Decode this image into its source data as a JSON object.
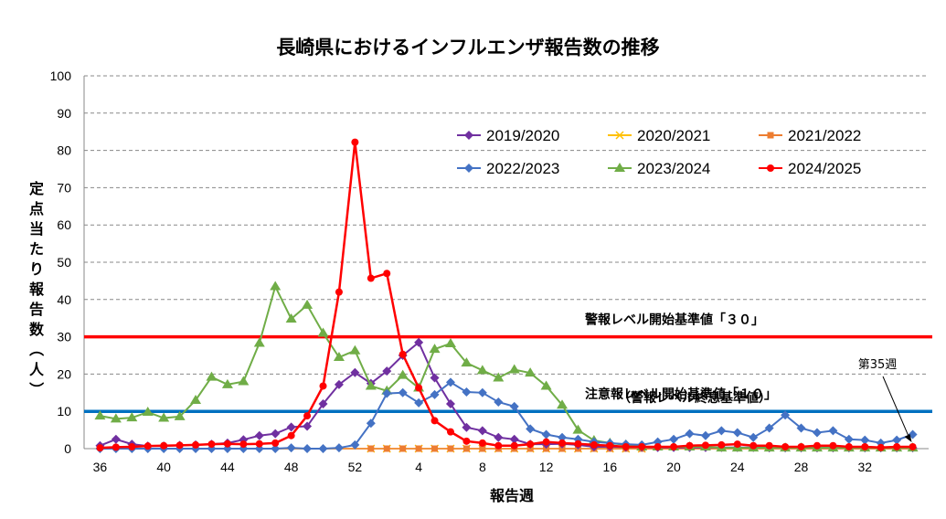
{
  "chart_data": {
    "type": "line",
    "title": "長崎県におけるインフルエンザ報告数の推移",
    "xlabel": "報告週",
    "ylabel": "定点当たり報告数（人）",
    "ylim": [
      0,
      100
    ],
    "yticks": [
      "0",
      "10",
      "20",
      "30",
      "40",
      "50",
      "60",
      "70",
      "80",
      "90",
      "100"
    ],
    "x": [
      36,
      37,
      38,
      39,
      40,
      41,
      42,
      43,
      44,
      45,
      46,
      47,
      48,
      49,
      50,
      51,
      52,
      1,
      2,
      3,
      4,
      5,
      6,
      7,
      8,
      9,
      10,
      11,
      12,
      13,
      14,
      15,
      16,
      17,
      18,
      19,
      20,
      21,
      22,
      23,
      24,
      25,
      26,
      27,
      28,
      29,
      30,
      31,
      32,
      33,
      34,
      35
    ],
    "x_tick_labels": [
      "36",
      "40",
      "44",
      "48",
      "52",
      "4",
      "8",
      "12",
      "16",
      "20",
      "24",
      "28",
      "32"
    ],
    "grid": "horizontal dashed",
    "legend_position": "top-right",
    "series": [
      {
        "name": "2019/2020",
        "color": "#7030a0",
        "marker": "diamond",
        "values": [
          0.8,
          2.5,
          1.2,
          0.7,
          0.7,
          0.9,
          1.0,
          1.2,
          1.5,
          2.4,
          3.5,
          4.0,
          5.8,
          6.0,
          12.0,
          17.2,
          20.4,
          17.5,
          20.8,
          25.0,
          28.5,
          19.0,
          12.0,
          5.7,
          4.8,
          3.0,
          2.5,
          1.2,
          1.2,
          1.3,
          1.0,
          0.5,
          0.5,
          0.4,
          0.4,
          0.3,
          0.3,
          0.3,
          0.3,
          0.3,
          0.3,
          0.3,
          0.2,
          0.2,
          0.2,
          0.2,
          0.2,
          0.2,
          0.2,
          0.2,
          0.2,
          0.2
        ]
      },
      {
        "name": "2020/2021",
        "color": "#ffc000",
        "marker": "x",
        "values": [
          0,
          0,
          0,
          0,
          0,
          0,
          0,
          0,
          0,
          0,
          0,
          0,
          0,
          0,
          0,
          0,
          0,
          0,
          0,
          0,
          0,
          0,
          0,
          0,
          0,
          0,
          0,
          0,
          0,
          0,
          0,
          0,
          0,
          0,
          0,
          0,
          0,
          0,
          0,
          0,
          0,
          0,
          0,
          0,
          0,
          0,
          0,
          0,
          0,
          0,
          0,
          0
        ]
      },
      {
        "name": "2021/2022",
        "color": "#ed7d31",
        "marker": "square",
        "values": [
          0,
          0,
          0,
          0,
          0,
          0,
          0,
          0,
          0,
          0,
          0,
          0,
          0,
          0,
          0,
          0,
          0,
          0,
          0,
          0,
          0,
          0,
          0,
          0,
          0,
          0,
          0,
          0,
          0,
          0,
          0,
          0,
          0,
          0,
          0,
          0,
          0,
          0,
          0,
          0,
          0,
          0,
          0,
          0,
          0,
          0,
          0,
          0,
          0,
          0,
          0,
          0
        ]
      },
      {
        "name": "2022/2023",
        "color": "#4472c4",
        "marker": "diamond",
        "values": [
          0,
          0,
          0,
          0,
          0,
          0,
          0,
          0,
          0,
          0,
          0,
          0,
          0.2,
          0,
          0,
          0.2,
          1.0,
          6.8,
          14.8,
          15.0,
          12.3,
          14.5,
          17.8,
          15.2,
          15.0,
          12.5,
          11.3,
          5.3,
          3.8,
          3.0,
          2.5,
          1.8,
          1.5,
          1.2,
          1.0,
          1.8,
          2.5,
          4.0,
          3.5,
          4.8,
          4.3,
          3.0,
          5.5,
          9.0,
          5.5,
          4.3,
          4.8,
          2.5,
          2.3,
          1.5,
          2.3,
          3.8
        ]
      },
      {
        "name": "2023/2024",
        "color": "#70ad47",
        "marker": "triangle",
        "values": [
          8.8,
          8.0,
          8.3,
          9.8,
          8.2,
          8.6,
          13.0,
          19.2,
          17.2,
          18.0,
          28.3,
          43.5,
          34.8,
          38.5,
          31.0,
          24.5,
          26.3,
          16.8,
          15.5,
          19.7,
          16.3,
          26.7,
          28.2,
          23.0,
          21.0,
          19.0,
          21.2,
          20.3,
          16.8,
          11.7,
          5.0,
          2.2,
          1.5,
          1.0,
          0.5,
          0.5,
          0.5,
          0.5,
          0.5,
          0.2,
          0.2,
          0.2,
          0.2,
          0.2,
          0.2,
          0.2,
          0.2,
          0.2,
          0.2,
          0.2,
          0.2,
          0.2
        ]
      },
      {
        "name": "2024/2025",
        "color": "#ff0000",
        "marker": "circle",
        "values": [
          0.2,
          0.4,
          0.5,
          0.7,
          0.8,
          0.9,
          1.0,
          1.2,
          1.3,
          1.2,
          1.3,
          1.5,
          3.5,
          8.8,
          16.8,
          42.0,
          82.2,
          45.7,
          47.0,
          25.3,
          16.3,
          7.5,
          4.5,
          2.0,
          1.5,
          0.8,
          0.8,
          1.2,
          1.8,
          1.5,
          1.3,
          1.0,
          0.8,
          0.5,
          0.5,
          0.5,
          0.5,
          0.8,
          0.9,
          1.0,
          1.2,
          0.8,
          0.8,
          0.5,
          0.5,
          0.8,
          0.8,
          0.5,
          0.5,
          0.3,
          0.5,
          0.5
        ]
      }
    ],
    "reference_lines": [
      {
        "value": 30,
        "color": "#ff0000",
        "label": "警報レベル開始基準値「３０」",
        "sublabel": ""
      },
      {
        "value": 10,
        "color": "#0070c0",
        "label": "注意報レベル開始基準値「１０」",
        "sublabel": "（警報レベル終息基準値）"
      }
    ],
    "annotation": {
      "text": "第35週",
      "points_to_index": 51
    }
  }
}
